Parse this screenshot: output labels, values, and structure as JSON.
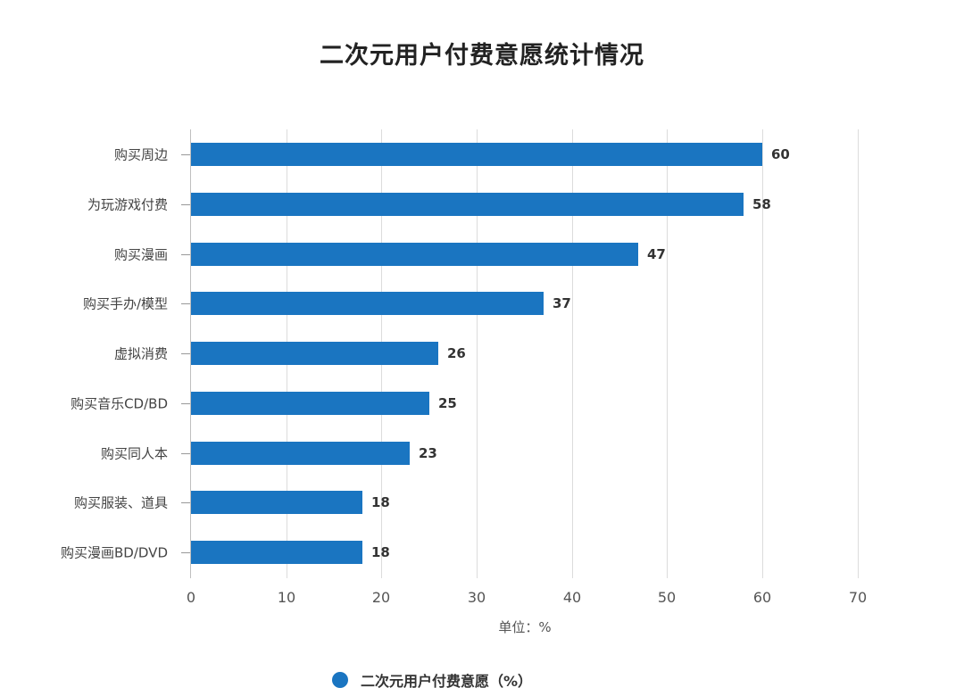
{
  "chart_data": {
    "type": "bar",
    "orientation": "horizontal",
    "title": "二次元用户付费意愿统计情况",
    "categories": [
      "购买周边",
      "为玩游戏付费",
      "购买漫画",
      "购买手办/模型",
      "虚拟消费",
      "购买音乐CD/BD",
      "购买同人本",
      "购买服装、道具",
      "购买漫画BD/DVD"
    ],
    "series": [
      {
        "name": "二次元用户付费意愿（%）",
        "values": [
          60,
          58,
          47,
          37,
          26,
          25,
          23,
          18,
          18
        ],
        "color": "#1a75c1"
      }
    ],
    "xlabel": "单位：%",
    "ylabel": "",
    "xlim": [
      0,
      70
    ],
    "xticks": [
      0,
      10,
      20,
      30,
      40,
      50,
      60,
      70
    ],
    "grid": true,
    "legend_position": "bottom",
    "data_labels": true
  },
  "title": "二次元用户付费意愿统计情况",
  "xaxis": {
    "label": "单位：%",
    "ticks": [
      "0",
      "10",
      "20",
      "30",
      "40",
      "50",
      "60",
      "70"
    ]
  },
  "legend": {
    "label": "二次元用户付费意愿（%）",
    "color": "#1a75c1"
  }
}
